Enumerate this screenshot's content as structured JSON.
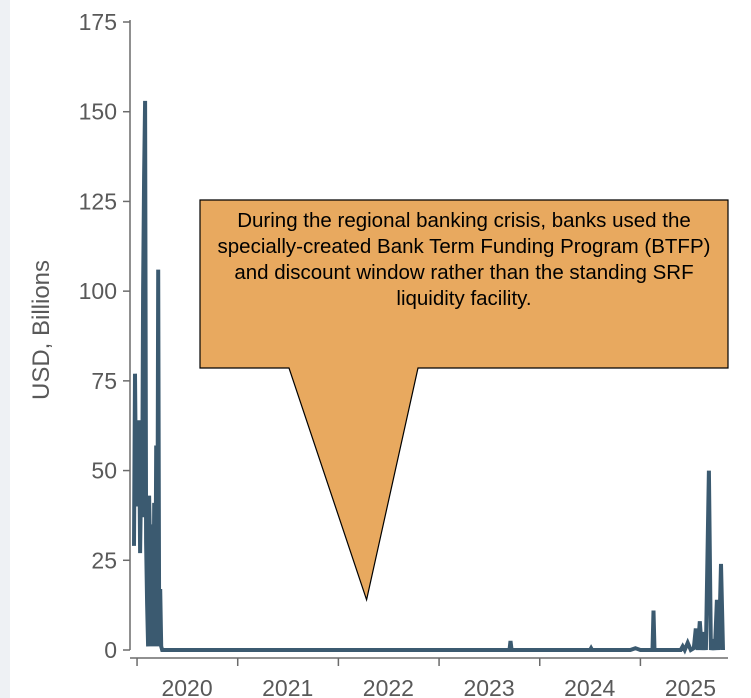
{
  "chart_data": {
    "type": "line",
    "title": "",
    "xlabel": "",
    "ylabel": "USD, Billions",
    "ylim": [
      0,
      175
    ],
    "xlim": [
      2019.93,
      2025.87
    ],
    "yticks": [
      0,
      25,
      50,
      75,
      100,
      125,
      150,
      175
    ],
    "xtick_labels": [
      "2020",
      "2021",
      "2022",
      "2023",
      "2024",
      "2025"
    ],
    "xtick_positions": [
      2020,
      2021,
      2022,
      2023,
      2024,
      2025
    ],
    "grid": false,
    "line_color": "#3b5a70",
    "series": [
      {
        "x": [
          2019.97,
          2019.98,
          2019.99,
          2020.0,
          2020.01,
          2020.02,
          2020.03,
          2020.04,
          2020.05,
          2020.06,
          2020.07,
          2020.08,
          2020.09,
          2020.1,
          2020.11,
          2020.12,
          2020.13,
          2020.14,
          2020.15,
          2020.16,
          2020.17,
          2020.18,
          2020.19,
          2020.2,
          2020.21,
          2020.22,
          2020.23,
          2020.24,
          2020.25,
          2020.26,
          2020.27,
          2020.28,
          2020.29,
          2020.3,
          2020.31,
          2020.32,
          2020.33,
          2020.34,
          2020.35,
          2020.36,
          2020.37,
          2020.38,
          2020.39,
          2020.4,
          2020.41,
          2020.42,
          2020.43,
          2020.44,
          2020.45,
          2020.46,
          2020.47,
          2020.48,
          2020.49,
          2020.5,
          2020.6,
          2021.0,
          2022.0,
          2023.0,
          2023.7,
          2023.71,
          2023.72,
          2024.5,
          2024.51,
          2024.52,
          2024.6,
          2024.9,
          2024.95,
          2025.0,
          2025.12,
          2025.13,
          2025.14,
          2025.15,
          2025.3,
          2025.4,
          2025.42,
          2025.44,
          2025.47,
          2025.5,
          2025.53,
          2025.55,
          2025.57,
          2025.59,
          2025.61,
          2025.63,
          2025.65,
          2025.68,
          2025.7,
          2025.72,
          2025.74,
          2025.76,
          2025.78,
          2025.8,
          2025.82
        ],
        "values": [
          29,
          77,
          45,
          62,
          40,
          64,
          27,
          48,
          37,
          100,
          132,
          153,
          30,
          13,
          1,
          43,
          27,
          1,
          35,
          1,
          41,
          1,
          57,
          1,
          106,
          1,
          17,
          1,
          0,
          0,
          0,
          0,
          0,
          0,
          0,
          0,
          0,
          0,
          0,
          0,
          0,
          0,
          0,
          0,
          0,
          0,
          0,
          0,
          0,
          0,
          0,
          0,
          0,
          0,
          0,
          0,
          0,
          0,
          0,
          2.5,
          0,
          0,
          0.5,
          0,
          0,
          0,
          0.5,
          0,
          0,
          11,
          0,
          0,
          0,
          0,
          1,
          0,
          2,
          0,
          0.5,
          6,
          0,
          8,
          0,
          5,
          0,
          50,
          0,
          3,
          0,
          14,
          0,
          24,
          0
        ]
      }
    ],
    "annotation": {
      "text": "During the regional banking crisis, banks used the specially-created Bank Term Funding Program (BTFP) and discount window rather than the standing SRF liquidity facility.",
      "fill": "#e8a95f",
      "pointer_x": 2022.28,
      "pointer_y": 14
    }
  }
}
